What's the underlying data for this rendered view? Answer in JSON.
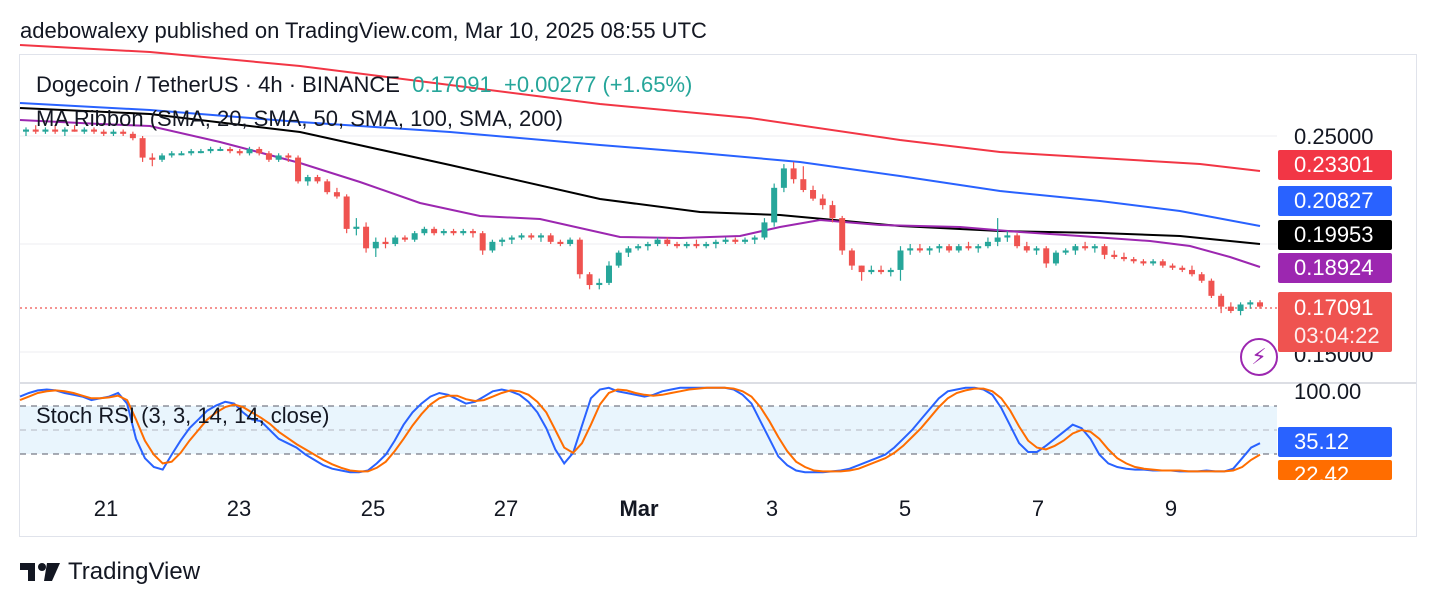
{
  "publisher": "adebowalexy published on TradingView.com, Mar 10, 2025 08:55 UTC",
  "legend": {
    "symbol": "Dogecoin / TetherUS · 4h · BINANCE",
    "price": "0.17091",
    "change": "+0.00277 (+1.65%)",
    "indicator": "MA Ribbon (SMA, 20, SMA, 50, SMA, 100, SMA, 200)",
    "oscillator": "Stoch RSI (3, 3, 14, 14, close)"
  },
  "price_axis": {
    "top_label": "0.25000",
    "bottom_label": "0.15000"
  },
  "price_tags": [
    {
      "value": "0.23301",
      "color": "#f23645",
      "name": "sma-200-tag"
    },
    {
      "value": "0.20827",
      "color": "#2962ff",
      "name": "sma-100-tag"
    },
    {
      "value": "0.19953",
      "color": "#000000",
      "name": "sma-50-tag"
    },
    {
      "value": "0.18924",
      "color": "#9c27b0",
      "name": "sma-20-tag"
    }
  ],
  "last_price_tag": {
    "value": "0.17091",
    "countdown": "03:04:22",
    "color": "#ef5350"
  },
  "stoch_axis": {
    "top_label": "100.00"
  },
  "stoch_tags": [
    {
      "value": "35.12",
      "color": "#2962ff",
      "name": "stoch-k-tag"
    },
    {
      "value": "22.42",
      "color": "#ff6d00",
      "name": "stoch-d-tag"
    }
  ],
  "x_ticks": [
    "21",
    "23",
    "25",
    "27",
    "Mar",
    "3",
    "5",
    "7",
    "9"
  ],
  "footer": {
    "brand": "TradingView",
    "logo_icon": "tradingview-logo-icon"
  },
  "icons": {
    "alert": "lightning-bolt-icon"
  },
  "colors": {
    "up": "#26a69a",
    "down": "#ef5350",
    "sma20": "#9c27b0",
    "sma50": "#000000",
    "sma100": "#2962ff",
    "sma200": "#f23645",
    "stoch_k": "#2962ff",
    "stoch_d": "#ff6d00"
  },
  "chart_data": [
    {
      "type": "candlestick",
      "title": "Dogecoin / TetherUS · 4h · BINANCE",
      "ylim": [
        0.145,
        0.26
      ],
      "x_labels": [
        "21",
        "23",
        "25",
        "27",
        "Mar",
        "3",
        "5",
        "7",
        "9"
      ],
      "candles_ohlc": [
        [
          0.252,
          0.254,
          0.25,
          0.253
        ],
        [
          0.253,
          0.255,
          0.251,
          0.252
        ],
        [
          0.252,
          0.254,
          0.251,
          0.253
        ],
        [
          0.253,
          0.255,
          0.251,
          0.252
        ],
        [
          0.252,
          0.254,
          0.25,
          0.253
        ],
        [
          0.253,
          0.255,
          0.252,
          0.252
        ],
        [
          0.252,
          0.254,
          0.251,
          0.253
        ],
        [
          0.253,
          0.254,
          0.251,
          0.252
        ],
        [
          0.252,
          0.253,
          0.25,
          0.251
        ],
        [
          0.251,
          0.253,
          0.25,
          0.252
        ],
        [
          0.252,
          0.253,
          0.25,
          0.251
        ],
        [
          0.251,
          0.252,
          0.248,
          0.249
        ],
        [
          0.249,
          0.25,
          0.238,
          0.24
        ],
        [
          0.24,
          0.242,
          0.236,
          0.239
        ],
        [
          0.239,
          0.242,
          0.238,
          0.241
        ],
        [
          0.241,
          0.243,
          0.24,
          0.242
        ],
        [
          0.242,
          0.243,
          0.241,
          0.242
        ],
        [
          0.242,
          0.244,
          0.241,
          0.243
        ],
        [
          0.243,
          0.244,
          0.242,
          0.243
        ],
        [
          0.243,
          0.245,
          0.242,
          0.244
        ],
        [
          0.244,
          0.245,
          0.243,
          0.244
        ],
        [
          0.244,
          0.245,
          0.242,
          0.243
        ],
        [
          0.243,
          0.244,
          0.241,
          0.242
        ],
        [
          0.242,
          0.245,
          0.241,
          0.244
        ],
        [
          0.244,
          0.245,
          0.241,
          0.242
        ],
        [
          0.242,
          0.243,
          0.238,
          0.239
        ],
        [
          0.239,
          0.242,
          0.238,
          0.241
        ],
        [
          0.241,
          0.242,
          0.238,
          0.24
        ],
        [
          0.24,
          0.241,
          0.228,
          0.229
        ],
        [
          0.229,
          0.232,
          0.227,
          0.231
        ],
        [
          0.231,
          0.232,
          0.228,
          0.229
        ],
        [
          0.229,
          0.23,
          0.223,
          0.224
        ],
        [
          0.224,
          0.226,
          0.221,
          0.222
        ],
        [
          0.222,
          0.223,
          0.205,
          0.207
        ],
        [
          0.207,
          0.212,
          0.204,
          0.208
        ],
        [
          0.208,
          0.21,
          0.196,
          0.198
        ],
        [
          0.198,
          0.203,
          0.194,
          0.201
        ],
        [
          0.201,
          0.203,
          0.198,
          0.2
        ],
        [
          0.2,
          0.204,
          0.199,
          0.203
        ],
        [
          0.203,
          0.204,
          0.201,
          0.202
        ],
        [
          0.202,
          0.206,
          0.201,
          0.205
        ],
        [
          0.205,
          0.208,
          0.204,
          0.207
        ],
        [
          0.207,
          0.208,
          0.204,
          0.205
        ],
        [
          0.205,
          0.207,
          0.204,
          0.206
        ],
        [
          0.206,
          0.207,
          0.204,
          0.205
        ],
        [
          0.205,
          0.207,
          0.204,
          0.206
        ],
        [
          0.206,
          0.207,
          0.203,
          0.205
        ],
        [
          0.205,
          0.206,
          0.195,
          0.197
        ],
        [
          0.197,
          0.202,
          0.196,
          0.201
        ],
        [
          0.201,
          0.203,
          0.199,
          0.202
        ],
        [
          0.202,
          0.204,
          0.2,
          0.203
        ],
        [
          0.203,
          0.205,
          0.202,
          0.204
        ],
        [
          0.204,
          0.205,
          0.202,
          0.203
        ],
        [
          0.203,
          0.205,
          0.201,
          0.204
        ],
        [
          0.204,
          0.205,
          0.2,
          0.201
        ],
        [
          0.201,
          0.202,
          0.199,
          0.2
        ],
        [
          0.2,
          0.203,
          0.199,
          0.202
        ],
        [
          0.202,
          0.203,
          0.184,
          0.186
        ],
        [
          0.186,
          0.187,
          0.179,
          0.181
        ],
        [
          0.181,
          0.184,
          0.179,
          0.182
        ],
        [
          0.182,
          0.192,
          0.181,
          0.19
        ],
        [
          0.19,
          0.197,
          0.189,
          0.196
        ],
        [
          0.196,
          0.199,
          0.194,
          0.198
        ],
        [
          0.198,
          0.2,
          0.197,
          0.199
        ],
        [
          0.199,
          0.201,
          0.197,
          0.2
        ],
        [
          0.2,
          0.203,
          0.199,
          0.202
        ],
        [
          0.202,
          0.203,
          0.199,
          0.2
        ],
        [
          0.2,
          0.201,
          0.198,
          0.199
        ],
        [
          0.199,
          0.201,
          0.198,
          0.2
        ],
        [
          0.2,
          0.202,
          0.198,
          0.199
        ],
        [
          0.199,
          0.201,
          0.198,
          0.2
        ],
        [
          0.2,
          0.202,
          0.198,
          0.201
        ],
        [
          0.201,
          0.203,
          0.2,
          0.202
        ],
        [
          0.202,
          0.203,
          0.2,
          0.201
        ],
        [
          0.201,
          0.203,
          0.2,
          0.202
        ],
        [
          0.202,
          0.204,
          0.2,
          0.203
        ],
        [
          0.203,
          0.212,
          0.202,
          0.21
        ],
        [
          0.21,
          0.228,
          0.208,
          0.226
        ],
        [
          0.226,
          0.237,
          0.224,
          0.235
        ],
        [
          0.235,
          0.238,
          0.228,
          0.23
        ],
        [
          0.23,
          0.236,
          0.224,
          0.225
        ],
        [
          0.225,
          0.227,
          0.22,
          0.221
        ],
        [
          0.221,
          0.223,
          0.216,
          0.218
        ],
        [
          0.218,
          0.22,
          0.21,
          0.212
        ],
        [
          0.212,
          0.213,
          0.195,
          0.197
        ],
        [
          0.197,
          0.198,
          0.188,
          0.19
        ],
        [
          0.19,
          0.19,
          0.183,
          0.187
        ],
        [
          0.187,
          0.19,
          0.186,
          0.188
        ],
        [
          0.188,
          0.19,
          0.186,
          0.187
        ],
        [
          0.187,
          0.189,
          0.185,
          0.188
        ],
        [
          0.188,
          0.199,
          0.183,
          0.197
        ],
        [
          0.197,
          0.2,
          0.195,
          0.198
        ],
        [
          0.198,
          0.2,
          0.196,
          0.197
        ],
        [
          0.197,
          0.199,
          0.195,
          0.198
        ],
        [
          0.198,
          0.2,
          0.196,
          0.199
        ],
        [
          0.199,
          0.2,
          0.196,
          0.197
        ],
        [
          0.197,
          0.2,
          0.196,
          0.199
        ],
        [
          0.199,
          0.201,
          0.197,
          0.198
        ],
        [
          0.198,
          0.2,
          0.196,
          0.199
        ],
        [
          0.199,
          0.203,
          0.198,
          0.201
        ],
        [
          0.201,
          0.212,
          0.199,
          0.203
        ],
        [
          0.203,
          0.206,
          0.201,
          0.204
        ],
        [
          0.204,
          0.205,
          0.198,
          0.199
        ],
        [
          0.199,
          0.201,
          0.196,
          0.197
        ],
        [
          0.197,
          0.199,
          0.195,
          0.198
        ],
        [
          0.198,
          0.199,
          0.189,
          0.191
        ],
        [
          0.191,
          0.197,
          0.19,
          0.196
        ],
        [
          0.196,
          0.198,
          0.195,
          0.197
        ],
        [
          0.197,
          0.2,
          0.195,
          0.199
        ],
        [
          0.199,
          0.201,
          0.197,
          0.198
        ],
        [
          0.198,
          0.2,
          0.196,
          0.199
        ],
        [
          0.199,
          0.2,
          0.193,
          0.195
        ],
        [
          0.195,
          0.197,
          0.193,
          0.194
        ],
        [
          0.194,
          0.196,
          0.192,
          0.193
        ],
        [
          0.193,
          0.194,
          0.191,
          0.192
        ],
        [
          0.192,
          0.193,
          0.19,
          0.191
        ],
        [
          0.191,
          0.193,
          0.19,
          0.192
        ],
        [
          0.192,
          0.193,
          0.189,
          0.19
        ],
        [
          0.19,
          0.191,
          0.188,
          0.189
        ],
        [
          0.189,
          0.19,
          0.187,
          0.188
        ],
        [
          0.188,
          0.19,
          0.185,
          0.186
        ],
        [
          0.186,
          0.187,
          0.182,
          0.183
        ],
        [
          0.183,
          0.184,
          0.175,
          0.176
        ],
        [
          0.176,
          0.177,
          0.168,
          0.171
        ],
        [
          0.171,
          0.173,
          0.168,
          0.169
        ],
        [
          0.169,
          0.173,
          0.167,
          0.172
        ],
        [
          0.172,
          0.174,
          0.17,
          0.173
        ],
        [
          0.173,
          0.174,
          0.17,
          0.171
        ]
      ]
    },
    {
      "type": "line",
      "title": "Stoch RSI (3, 3, 14, 14, close)",
      "ylim": [
        0,
        100
      ],
      "series": [
        {
          "name": "K",
          "values": [
            88,
            92,
            95,
            96,
            95,
            92,
            90,
            88,
            84,
            86,
            88,
            92,
            80,
            40,
            18,
            8,
            5,
            22,
            38,
            52,
            62,
            72,
            78,
            82,
            80,
            70,
            62,
            60,
            50,
            40,
            35,
            30,
            22,
            16,
            10,
            6,
            4,
            2,
            2,
            4,
            12,
            22,
            38,
            56,
            70,
            80,
            88,
            92,
            90,
            85,
            80,
            82,
            88,
            94,
            96,
            94,
            90,
            82,
            70,
            52,
            28,
            12,
            24,
            55,
            86,
            96,
            98,
            94,
            92,
            90,
            88,
            90,
            94,
            96,
            98,
            98,
            98,
            98,
            98,
            98,
            96,
            90,
            80,
            60,
            40,
            20,
            10,
            4,
            2,
            2,
            2,
            3,
            4,
            6,
            10,
            14,
            18,
            22,
            30,
            40,
            50,
            62,
            74,
            86,
            94,
            96,
            98,
            98,
            96,
            90,
            75,
            55,
            35,
            25,
            25,
            32,
            40,
            48,
            56,
            52,
            40,
            22,
            12,
            8,
            6,
            5,
            5,
            4,
            4,
            4,
            3,
            3,
            3,
            4,
            3,
            3,
            6,
            18,
            30,
            35
          ]
        },
        {
          "name": "D",
          "values": [
            84,
            88,
            92,
            94,
            95,
            94,
            92,
            89,
            86,
            86,
            87,
            89,
            84,
            62,
            38,
            22,
            12,
            14,
            24,
            38,
            50,
            62,
            70,
            76,
            79,
            76,
            70,
            64,
            57,
            48,
            41,
            34,
            28,
            22,
            16,
            11,
            7,
            4,
            3,
            3,
            7,
            14,
            26,
            40,
            55,
            68,
            79,
            86,
            89,
            89,
            85,
            83,
            84,
            88,
            92,
            95,
            94,
            90,
            82,
            70,
            50,
            30,
            24,
            35,
            56,
            79,
            92,
            96,
            95,
            92,
            90,
            89,
            90,
            92,
            94,
            96,
            97,
            98,
            98,
            98,
            97,
            94,
            88,
            76,
            60,
            42,
            26,
            14,
            8,
            4,
            3,
            3,
            3,
            4,
            6,
            10,
            14,
            18,
            24,
            32,
            42,
            52,
            64,
            76,
            86,
            92,
            95,
            97,
            97,
            94,
            86,
            72,
            54,
            38,
            30,
            28,
            32,
            38,
            46,
            50,
            48,
            40,
            28,
            18,
            12,
            8,
            6,
            5,
            4,
            4,
            4,
            3,
            3,
            3,
            3,
            3,
            4,
            8,
            16,
            22
          ]
        }
      ]
    }
  ]
}
